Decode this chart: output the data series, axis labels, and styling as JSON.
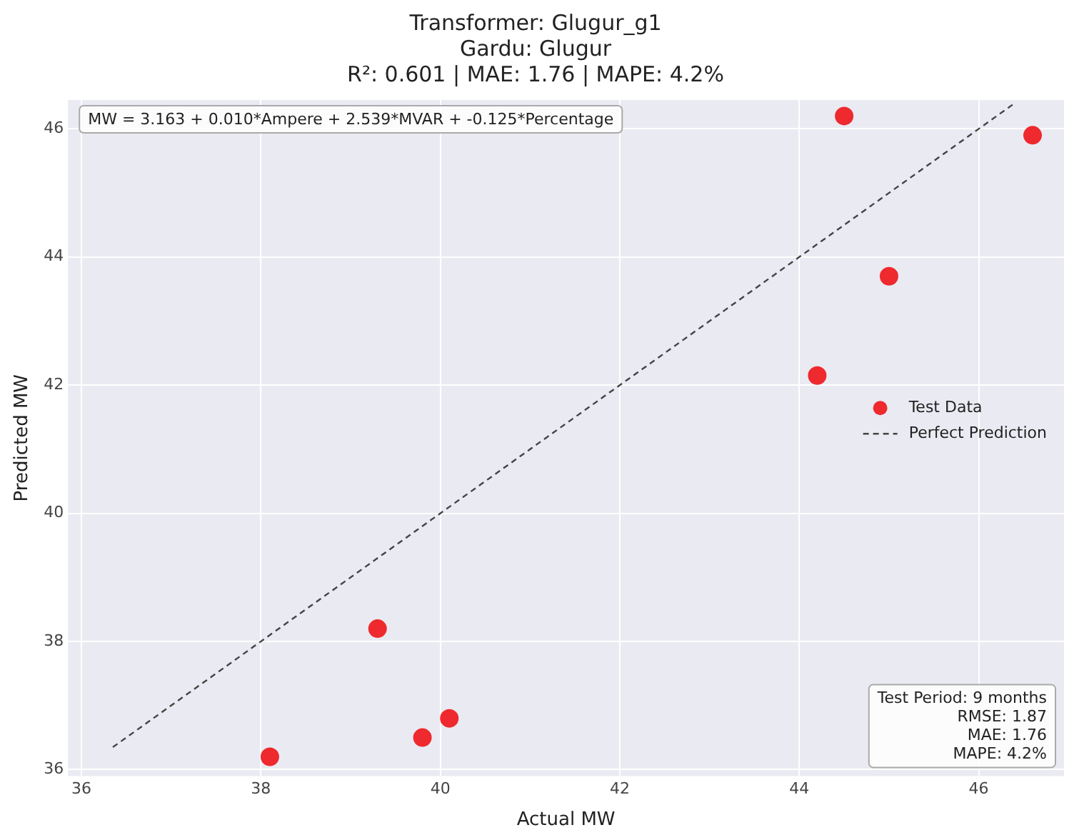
{
  "chart_data": {
    "type": "scatter",
    "title": "Transformer: Glugur_g1\nGardu: Glugur\nR²: 0.601 | MAE: 1.76 | MAPE: 4.2%",
    "xlabel": "Actual MW",
    "ylabel": "Predicted MW",
    "xlim": [
      35.85,
      46.95
    ],
    "ylim": [
      35.9,
      46.45
    ],
    "xticks": [
      36,
      38,
      40,
      42,
      44,
      46
    ],
    "yticks": [
      36,
      38,
      40,
      42,
      44,
      46
    ],
    "grid": true,
    "legend": "right",
    "annotations": [
      "MW = 3.163 + 0.010*Ampere + 2.539*MVAR + -0.125*Percentage",
      "Test Period: 9 months\nRMSE: 1.87\nMAE: 1.76\nMAPE: 4.2%"
    ],
    "series": [
      {
        "name": "Test Data",
        "type": "scatter",
        "color": "#ee2a2e",
        "marker": "circle",
        "x": [
          38.1,
          39.3,
          39.8,
          40.1,
          44.2,
          44.5,
          45.0,
          46.6
        ],
        "values": [
          36.2,
          38.2,
          36.5,
          36.8,
          42.15,
          46.2,
          43.7,
          45.9
        ]
      },
      {
        "name": "Perfect Prediction",
        "type": "line",
        "color": "#444444",
        "line_style": "dashed",
        "x": [
          36.35,
          46.4
        ],
        "values": [
          36.35,
          46.4
        ]
      }
    ]
  }
}
